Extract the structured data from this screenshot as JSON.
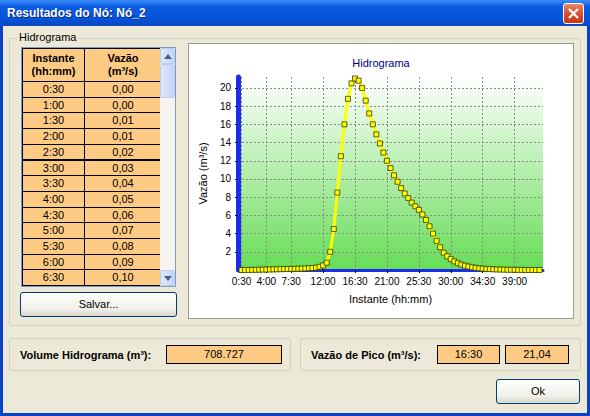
{
  "window": {
    "title": "Resultados do Nó: Nó_2"
  },
  "group_title": "Hidrograma",
  "table": {
    "columns": [
      [
        "Instante",
        "(hh:mm)"
      ],
      [
        "Vazão",
        "(m³/s)"
      ]
    ],
    "rows": [
      [
        "0:30",
        "0,00"
      ],
      [
        "1:00",
        "0,00"
      ],
      [
        "1:30",
        "0,01"
      ],
      [
        "2:00",
        "0,01"
      ],
      [
        "2:30",
        "0,02"
      ],
      [
        "3:00",
        "0,03"
      ],
      [
        "3:30",
        "0,04"
      ],
      [
        "4:00",
        "0,05"
      ],
      [
        "4:30",
        "0,06"
      ],
      [
        "5:00",
        "0,07"
      ],
      [
        "5:30",
        "0,08"
      ],
      [
        "6:00",
        "0,09"
      ],
      [
        "6:30",
        "0,10"
      ]
    ]
  },
  "save_button": "Salvar...",
  "chart_data": {
    "type": "line",
    "title": "Hidrograma",
    "x_label": "Instante (hh:mm)",
    "y_label": "Vazão (m³/s)",
    "color": "#ffff00",
    "marker": "square",
    "grid": true,
    "x": [
      0.5,
      1,
      1.5,
      2,
      2.5,
      3,
      3.5,
      4,
      4.5,
      5,
      5.5,
      6,
      6.5,
      7,
      7.5,
      8,
      8.5,
      9,
      9.5,
      10,
      10.5,
      11,
      11.5,
      12,
      12.5,
      13,
      13.5,
      14,
      14.5,
      15,
      15.5,
      16,
      16.5,
      17,
      17.5,
      18,
      18.5,
      19,
      19.5,
      20,
      20.5,
      21,
      21.5,
      22,
      22.5,
      23,
      23.5,
      24,
      24.5,
      25,
      25.5,
      26,
      26.5,
      27,
      27.5,
      28,
      28.5,
      29,
      29.5,
      30,
      30.5,
      31,
      31.5,
      32,
      32.5,
      33,
      33.5,
      34,
      34.5,
      35,
      35.5,
      36,
      36.5,
      37,
      37.5,
      38,
      38.5,
      39,
      39.5,
      40,
      40.5,
      41,
      41.5,
      42,
      42.5
    ],
    "values": [
      0,
      0,
      0.01,
      0.01,
      0.02,
      0.03,
      0.04,
      0.05,
      0.06,
      0.07,
      0.08,
      0.09,
      0.1,
      0.11,
      0.12,
      0.13,
      0.14,
      0.15,
      0.17,
      0.19,
      0.22,
      0.26,
      0.35,
      0.5,
      0.8,
      2,
      4.5,
      8.5,
      12.5,
      16,
      18.8,
      20.5,
      21.04,
      20.8,
      20,
      18.6,
      17.2,
      16,
      14.9,
      13.9,
      12.9,
      12,
      11.2,
      10.4,
      9.7,
      9,
      8.4,
      7.9,
      7.4,
      7,
      6.6,
      6.1,
      5.5,
      4.8,
      4,
      3.2,
      2.5,
      1.9,
      1.5,
      1.2,
      0.95,
      0.75,
      0.6,
      0.48,
      0.38,
      0.3,
      0.24,
      0.19,
      0.15,
      0.12,
      0.1,
      0.08,
      0.06,
      0.05,
      0.04,
      0.03,
      0.02,
      0.02,
      0.01,
      0.01,
      0,
      0,
      0,
      0,
      0
    ],
    "xlim": [
      0,
      43
    ],
    "xticks": [
      {
        "value": 0.5,
        "label": "0:30"
      },
      {
        "value": 4,
        "label": "4:00"
      },
      {
        "value": 7.5,
        "label": "7:30"
      },
      {
        "value": 12,
        "label": "12:00"
      },
      {
        "value": 16.5,
        "label": "16:30"
      },
      {
        "value": 21,
        "label": "21:00"
      },
      {
        "value": 25.5,
        "label": "25:30"
      },
      {
        "value": 30,
        "label": "30:00"
      },
      {
        "value": 34.5,
        "label": "34:30"
      },
      {
        "value": 39,
        "label": "39:00"
      }
    ],
    "ylim": [
      0,
      21.2
    ],
    "yticks": [
      2,
      4,
      6,
      8,
      10,
      12,
      14,
      16,
      18,
      20
    ]
  },
  "volume": {
    "label": "Volume Hidrograma (m³):",
    "value": "708.727"
  },
  "peak": {
    "label": "Vazão de Pico (m³/s):",
    "time": "16:30",
    "value": "21,04"
  },
  "ok_button": "Ok"
}
